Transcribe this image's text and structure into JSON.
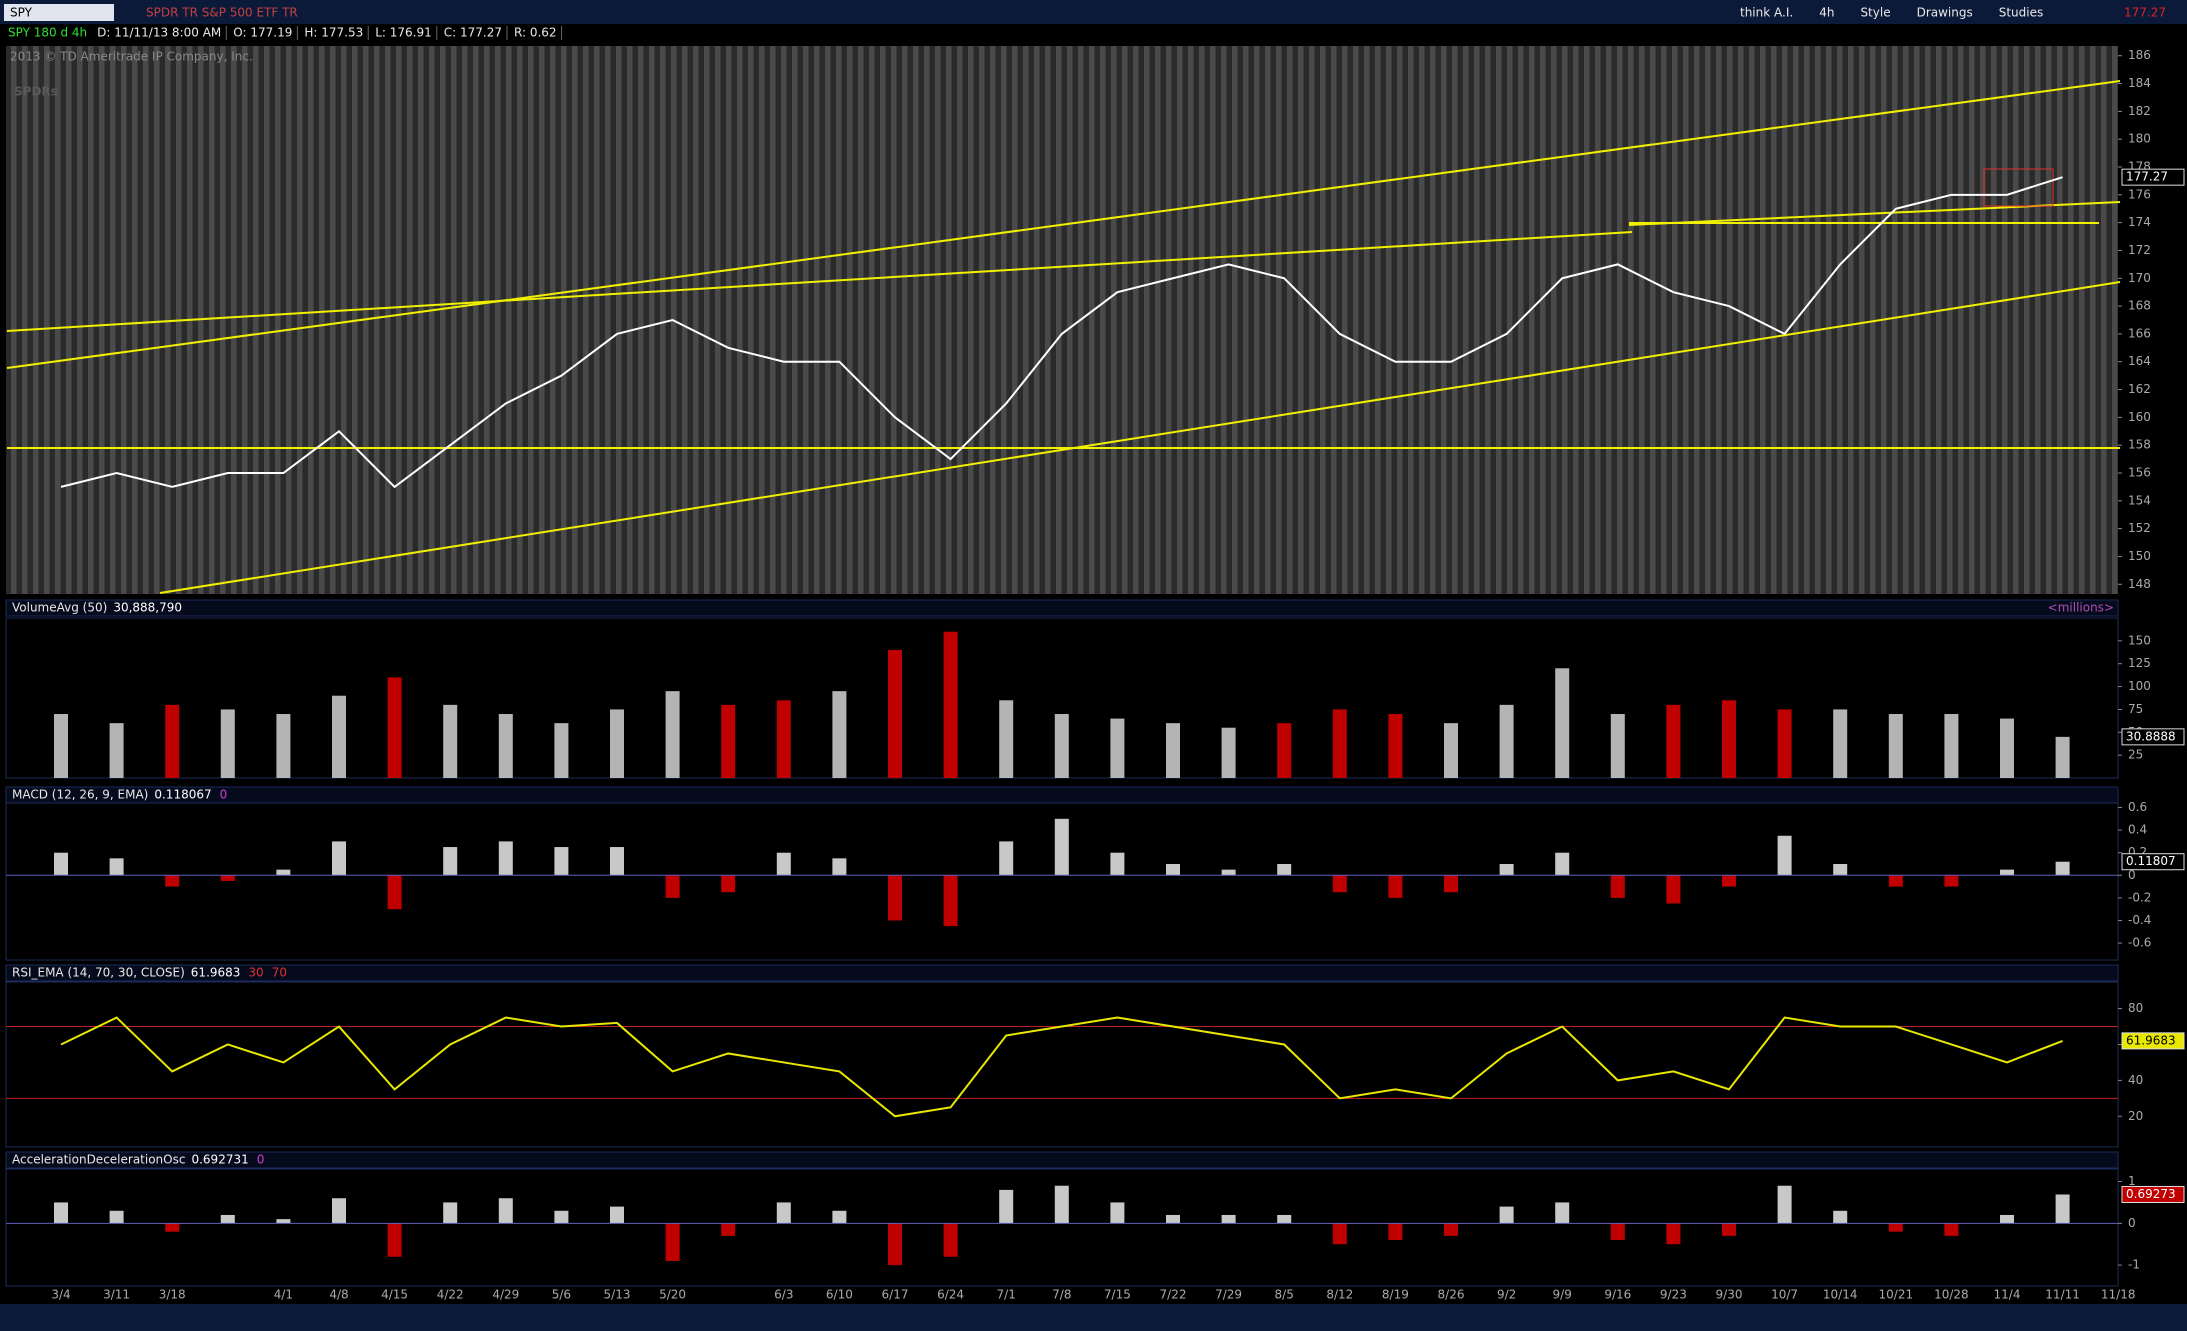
{
  "toolbar": {
    "symbol": "SPY",
    "description": "SPDR TR S&P 500 ETF TR",
    "buttons": [
      "think A.I.",
      "4h",
      "Style",
      "Drawings",
      "Studies"
    ],
    "last": "177.27"
  },
  "header": {
    "symbol_period": "SPY 180 d 4h",
    "fields": [
      "D: 11/11/13 8:00 AM",
      "O: 177.19",
      "H: 177.53",
      "L: 176.91",
      "C: 177.27",
      "R: 0.62"
    ],
    "copyright": "2013 © TD Ameritrade IP Company, Inc.",
    "watermark": "SPDRs"
  },
  "chart_data": [
    {
      "type": "line",
      "color": "#ffffff",
      "last_label": "177.27",
      "categories": [
        "3/4",
        "3/11",
        "3/18",
        null,
        "4/1",
        "4/8",
        "4/15",
        "4/22",
        "4/29",
        "5/6",
        "5/13",
        "5/20",
        null,
        "6/3",
        "6/10",
        "6/17",
        "6/24",
        "7/1",
        "7/8",
        "7/15",
        "7/22",
        "7/29",
        "8/5",
        "8/12",
        "8/19",
        "8/26",
        "9/2",
        "9/9",
        "9/16",
        "9/23",
        "9/30",
        "10/7",
        "10/14",
        "10/21",
        "10/28",
        "11/4",
        "11/11",
        "11/18"
      ],
      "values": [
        155,
        156,
        155,
        156,
        156,
        159,
        155,
        158,
        161,
        163,
        166,
        167,
        165,
        164,
        164,
        160,
        157,
        161,
        166,
        169,
        170,
        171,
        170,
        166,
        164,
        164,
        166,
        170,
        171,
        169,
        168,
        166,
        171,
        175,
        176,
        176,
        177.27,
        null
      ],
      "ylim": [
        147.3,
        186.7
      ],
      "yticks": [
        148,
        150,
        152,
        154,
        156,
        158,
        160,
        162,
        164,
        166,
        168,
        170,
        172,
        174,
        176,
        178,
        180,
        182,
        184,
        186
      ]
    },
    {
      "type": "bar",
      "title": "VolumeAvg (50)",
      "readouts": [
        "30,888,790"
      ],
      "axis_label": "<millions>",
      "last_label": "30.8888",
      "up_color": "#b4b4b4",
      "down_color": "#c00000",
      "values": [
        70,
        60,
        80,
        75,
        70,
        90,
        110,
        80,
        70,
        60,
        75,
        95,
        80,
        85,
        95,
        140,
        160,
        85,
        70,
        65,
        60,
        55,
        60,
        75,
        70,
        60,
        80,
        120,
        70,
        80,
        85,
        75,
        75,
        70,
        70,
        65,
        45,
        null
      ],
      "ylim": [
        0,
        175
      ],
      "yticks": [
        25,
        50,
        75,
        100,
        125,
        150
      ]
    },
    {
      "type": "bar",
      "title": "MACD (12, 26, 9, EMA)",
      "readouts": [
        "0.118067",
        "0"
      ],
      "last_label": "0.11807",
      "up_color": "#c8c8c8",
      "down_color": "#c00000",
      "values": [
        0.2,
        0.15,
        -0.1,
        -0.05,
        0.05,
        0.3,
        -0.3,
        0.25,
        0.3,
        0.25,
        0.25,
        -0.2,
        -0.15,
        0.2,
        0.15,
        -0.4,
        -0.45,
        0.3,
        0.5,
        0.2,
        0.1,
        0.05,
        0.1,
        -0.15,
        -0.2,
        -0.15,
        0.1,
        0.2,
        -0.2,
        -0.25,
        -0.1,
        0.35,
        0.1,
        -0.1,
        -0.1,
        0.05,
        0.12,
        null
      ],
      "ylim": [
        -0.75,
        0.64
      ],
      "yticks": [
        -0.6,
        -0.4,
        -0.2,
        0,
        0.2,
        0.4,
        0.6
      ]
    },
    {
      "type": "line",
      "title": "RSI_EMA (14, 70, 30, CLOSE)",
      "readouts": [
        "61.9683"
      ],
      "levels": [
        30,
        70
      ],
      "color": "#e8e800",
      "last_label": "61.9683",
      "values": [
        60,
        75,
        45,
        60,
        50,
        70,
        35,
        60,
        75,
        70,
        72,
        45,
        55,
        50,
        45,
        20,
        25,
        65,
        70,
        75,
        70,
        65,
        60,
        30,
        35,
        30,
        55,
        70,
        40,
        45,
        35,
        75,
        70,
        70,
        60,
        50,
        62,
        null
      ],
      "ylim": [
        2.9,
        94.8
      ],
      "yticks": [
        20,
        40,
        60,
        80
      ]
    },
    {
      "type": "bar",
      "title": "AccelerationDecelerationOsc",
      "readouts": [
        "0.692731",
        "0"
      ],
      "last_label": "0.69273",
      "up_color": "#c8c8c8",
      "down_color": "#c00000",
      "values": [
        0.5,
        0.3,
        -0.2,
        0.2,
        0.1,
        0.6,
        -0.8,
        0.5,
        0.6,
        0.3,
        0.4,
        -0.9,
        -0.3,
        0.5,
        0.3,
        -1.0,
        -0.8,
        0.8,
        0.9,
        0.5,
        0.2,
        0.2,
        0.2,
        -0.5,
        -0.4,
        -0.3,
        0.4,
        0.5,
        -0.4,
        -0.5,
        -0.3,
        0.9,
        0.3,
        -0.2,
        -0.3,
        0.2,
        0.69,
        null
      ],
      "ylim": [
        -1.5,
        1.3
      ],
      "yticks": [
        -1,
        0,
        1
      ]
    }
  ]
}
